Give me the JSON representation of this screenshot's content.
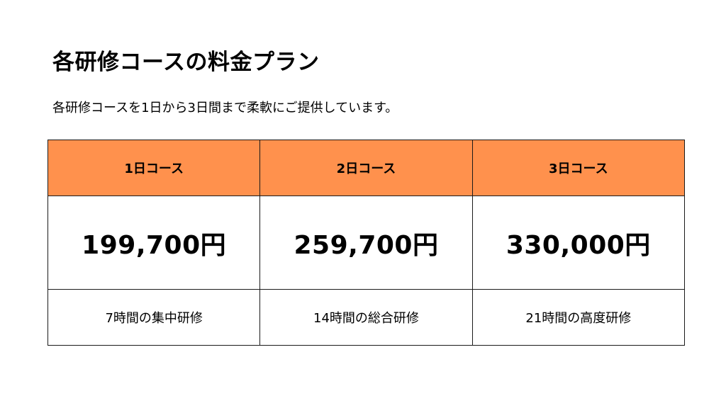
{
  "header": {
    "title": "各研修コースの料金プラン",
    "subtitle": "各研修コースを1日から3日間まで柔軟にご提供しています。"
  },
  "theme": {
    "header_bg": "#FF914D",
    "border": "#1a1a1a"
  },
  "pricing_table": {
    "columns": [
      {
        "name": "1日コース",
        "price": "199,700円",
        "description": "7時間の集中研修"
      },
      {
        "name": "2日コース",
        "price": "259,700円",
        "description": "14時間の総合研修"
      },
      {
        "name": "3日コース",
        "price": "330,000円",
        "description": "21時間の高度研修"
      }
    ]
  }
}
